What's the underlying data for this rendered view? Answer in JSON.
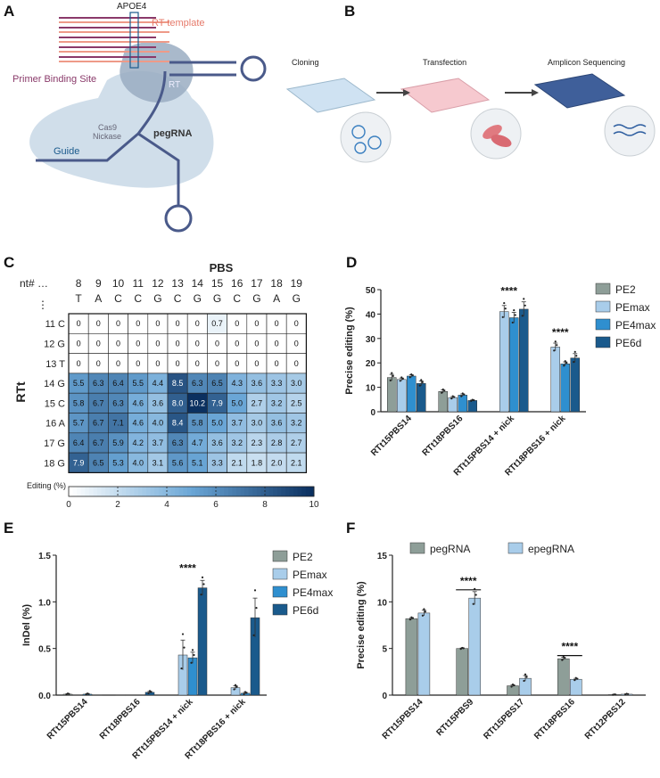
{
  "colors": {
    "PE2": "#8e9e98",
    "PEmax": "#a9cdea",
    "PE4max": "#2f8fcf",
    "PE6d": "#1a5a8c",
    "pegRNA": "#8e9e98",
    "epegRNA": "#a9cdea",
    "heat_low": "#ffffff",
    "heat_high": "#0b3060"
  },
  "panel_a": {
    "letter": "A",
    "labels": {
      "apoe4": "APOE4",
      "rt_template": "RT template",
      "pbs": "Primer Binding Site",
      "rt": "RT",
      "cas9": "Cas9",
      "nickase": "Nickase",
      "pegrna": "pegRNA",
      "guide": "Guide"
    }
  },
  "panel_b": {
    "letter": "B",
    "steps": [
      "Cloning",
      "Transfection",
      "Amplicon Sequencing"
    ]
  },
  "chart_data": [
    {
      "panel": "C",
      "type": "heatmap",
      "title": "PBS",
      "ylabel": "RTt",
      "col_prefix": "nt# …",
      "row_prefix": "⋮",
      "columns": [
        {
          "n": "8",
          "b": "T"
        },
        {
          "n": "9",
          "b": "A"
        },
        {
          "n": "10",
          "b": "C"
        },
        {
          "n": "11",
          "b": "C"
        },
        {
          "n": "12",
          "b": "G"
        },
        {
          "n": "13",
          "b": "C"
        },
        {
          "n": "14",
          "b": "G"
        },
        {
          "n": "15",
          "b": "G"
        },
        {
          "n": "16",
          "b": "C"
        },
        {
          "n": "17",
          "b": "G"
        },
        {
          "n": "18",
          "b": "A"
        },
        {
          "n": "19",
          "b": "G"
        }
      ],
      "rows": [
        "11 C",
        "12 G",
        "13 T",
        "14 G",
        "15 C",
        "16 A",
        "17 G",
        "18 G"
      ],
      "values": [
        [
          "0",
          "0",
          "0",
          "0",
          "0",
          "0",
          "0",
          "0.7",
          "0",
          "0",
          "0",
          "0"
        ],
        [
          "0",
          "0",
          "0",
          "0",
          "0",
          "0",
          "0",
          "0",
          "0",
          "0",
          "0",
          "0"
        ],
        [
          "0",
          "0",
          "0",
          "0",
          "0",
          "0",
          "0",
          "0",
          "0",
          "0",
          "0",
          "0"
        ],
        [
          "5.5",
          "6.3",
          "6.4",
          "5.5",
          "4.4",
          "8.5",
          "6.3",
          "6.5",
          "4.3",
          "3.6",
          "3.3",
          "3.0"
        ],
        [
          "5.8",
          "6.7",
          "6.3",
          "4.6",
          "3.6",
          "8.0",
          "10.2",
          "7.9",
          "5.0",
          "2.7",
          "3.2",
          "2.5"
        ],
        [
          "5.7",
          "6.7",
          "7.1",
          "4.6",
          "4.0",
          "8.4",
          "5.8",
          "5.0",
          "3.7",
          "3.0",
          "3.6",
          "3.2"
        ],
        [
          "6.4",
          "6.7",
          "5.9",
          "4.2",
          "3.7",
          "6.3",
          "4.7",
          "3.6",
          "3.2",
          "2.3",
          "2.8",
          "2.7"
        ],
        [
          "7.9",
          "6.5",
          "5.3",
          "4.0",
          "3.1",
          "5.6",
          "5.1",
          "3.3",
          "2.1",
          "1.8",
          "2.0",
          "2.1"
        ]
      ],
      "colorbar": {
        "label": "Editing (%)",
        "range": [
          0,
          10
        ],
        "ticks": [
          "0",
          "2",
          "4",
          "6",
          "8",
          "10"
        ]
      }
    },
    {
      "panel": "D",
      "type": "bar",
      "ylabel": "Precise editing (%)",
      "ylim": [
        0,
        50
      ],
      "yticks": [
        "0",
        "10",
        "20",
        "30",
        "40",
        "50"
      ],
      "categories": [
        "RTt15PBS14",
        "RTt18PBS16",
        "RTt15PBS14 + nick",
        "RTt18PBS16 + nick"
      ],
      "series": [
        {
          "name": "PE2",
          "values": [
            14.0,
            8.3,
            null,
            null
          ],
          "err": [
            1.3,
            0.6,
            null,
            null
          ]
        },
        {
          "name": "PEmax",
          "values": [
            13.2,
            5.8,
            41.0,
            26.5
          ],
          "err": [
            0.6,
            0.4,
            2.5,
            1.6
          ]
        },
        {
          "name": "PE4max",
          "values": [
            14.6,
            6.8,
            38.5,
            19.6
          ],
          "err": [
            0.5,
            0.5,
            2.2,
            0.8
          ]
        },
        {
          "name": "PE6d",
          "values": [
            11.6,
            4.6,
            42.0,
            22.0
          ],
          "err": [
            1.0,
            0.2,
            3.0,
            1.8
          ]
        }
      ],
      "significance": [
        {
          "category": 2,
          "label": "****"
        },
        {
          "category": 3,
          "label": "****"
        }
      ],
      "legend_position": "top-right"
    },
    {
      "panel": "E",
      "type": "bar",
      "ylabel": "InDel (%)",
      "ylim": [
        0,
        1.5
      ],
      "yticks": [
        "0.0",
        "0.5",
        "1.0",
        "1.5"
      ],
      "categories": [
        "RTt15PBS14",
        "RTt18PBS16",
        "RTt15PBS14 + nick",
        "RTt18PBS16 + nick"
      ],
      "series": [
        {
          "name": "PE2",
          "values": [
            0.01,
            0.0,
            null,
            null
          ],
          "err": [
            0.005,
            0.0,
            null,
            null
          ]
        },
        {
          "name": "PEmax",
          "values": [
            0.0,
            0.0,
            0.43,
            0.08
          ],
          "err": [
            0.0,
            0.0,
            0.16,
            0.02
          ]
        },
        {
          "name": "PE4max",
          "values": [
            0.01,
            0.0,
            0.4,
            0.02
          ],
          "err": [
            0.005,
            0.0,
            0.06,
            0.01
          ]
        },
        {
          "name": "PE6d",
          "values": [
            0.0,
            0.03,
            1.15,
            0.83
          ],
          "err": [
            0.0,
            0.01,
            0.08,
            0.21
          ]
        }
      ],
      "significance": [
        {
          "category": 2,
          "label": "****"
        }
      ],
      "legend_position": "top-right"
    },
    {
      "panel": "F",
      "type": "bar",
      "ylabel": "Precise editing (%)",
      "ylim": [
        0,
        15
      ],
      "yticks": [
        "0",
        "5",
        "10",
        "15"
      ],
      "categories": [
        "RTt15PBS14",
        "RTt15PBS9",
        "RTt15PBS17",
        "RTt18PBS16",
        "RTt12PBS12"
      ],
      "series": [
        {
          "name": "pegRNA",
          "values": [
            8.2,
            5.0,
            1.0,
            3.9,
            0.05
          ],
          "err": [
            0.1,
            0.05,
            0.1,
            0.15,
            0.02
          ]
        },
        {
          "name": "epegRNA",
          "values": [
            8.8,
            10.4,
            1.8,
            1.7,
            0.1
          ],
          "err": [
            0.3,
            0.7,
            0.3,
            0.1,
            0.03
          ]
        }
      ],
      "significance": [
        {
          "category": 1,
          "label": "****"
        },
        {
          "category": 3,
          "label": "****"
        }
      ],
      "legend_position": "top"
    }
  ]
}
